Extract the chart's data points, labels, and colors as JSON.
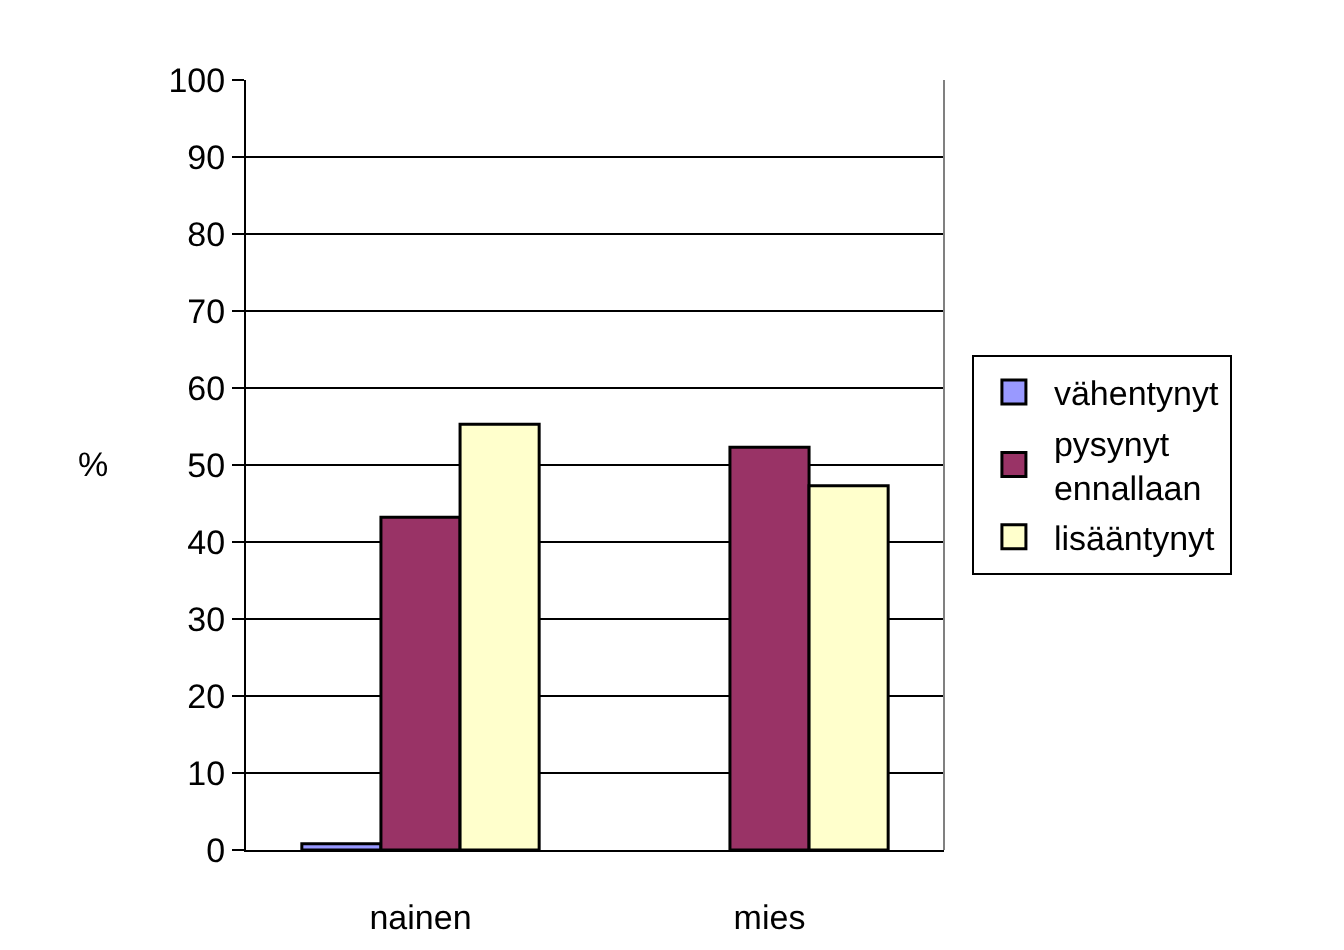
{
  "chart_data": {
    "type": "bar",
    "ylabel": "%",
    "categories": [
      "nainen",
      "mies"
    ],
    "series": [
      {
        "name": "vähentynyt",
        "color": "#9999ff",
        "values": [
          0.8,
          null
        ]
      },
      {
        "name": "pysynyt ennallaan",
        "color": "#993366",
        "values": [
          43.2,
          52.3
        ]
      },
      {
        "name": "lisääntynyt",
        "color": "#ffffcc",
        "values": [
          55.3,
          47.3
        ]
      }
    ],
    "ylim": [
      0,
      100
    ],
    "yticks": [
      0,
      10,
      20,
      30,
      40,
      50,
      60,
      70,
      80,
      90,
      100
    ],
    "grid": "y",
    "legend": "right"
  }
}
